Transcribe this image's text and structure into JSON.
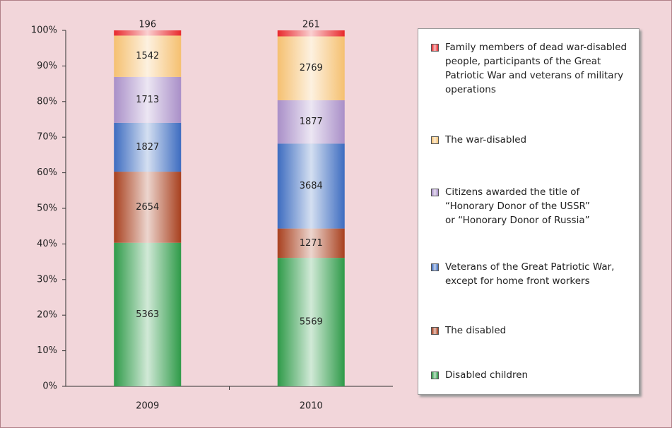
{
  "chart_data": {
    "type": "bar",
    "stacked": true,
    "normalize": true,
    "categories": [
      "2009",
      "2010"
    ],
    "series": [
      {
        "name": "Disabled children",
        "color": "#2e9a48",
        "values": [
          5363,
          5569
        ]
      },
      {
        "name": "The disabled",
        "color": "#a8401e",
        "values": [
          2654,
          1271
        ]
      },
      {
        "name": "Veterans of the Great Patriotic War,\nexcept for home front workers",
        "color": "#3d6cc0",
        "values": [
          1827,
          3684
        ]
      },
      {
        "name": "Citizens awarded the title of\n“Honorary Donor of the USSR”\nor “Honorary Donor of Russia”",
        "color": "#a98fc8",
        "values": [
          1713,
          1877
        ]
      },
      {
        "name": "The war-disabled",
        "color": "#f5c070",
        "values": [
          1542,
          2769
        ]
      },
      {
        "name": "Family members of dead war-disabled\npeople, participants of the Great\nPatriotic War and veterans of military\noperations",
        "color": "#e8282c",
        "values": [
          196,
          261
        ]
      }
    ],
    "ylim": [
      0,
      100
    ],
    "yticks": [
      {
        "value": 0,
        "label": "0%"
      },
      {
        "value": 10,
        "label": "10%"
      },
      {
        "value": 20,
        "label": "20%"
      },
      {
        "value": 30,
        "label": "30%"
      },
      {
        "value": 40,
        "label": "40%"
      },
      {
        "value": 50,
        "label": "50%"
      },
      {
        "value": 60,
        "label": "60%"
      },
      {
        "value": 70,
        "label": "70%"
      },
      {
        "value": 80,
        "label": "80%"
      },
      {
        "value": 90,
        "label": "90%"
      },
      {
        "value": 100,
        "label": "100%"
      }
    ],
    "grid": false,
    "legend": "right"
  }
}
